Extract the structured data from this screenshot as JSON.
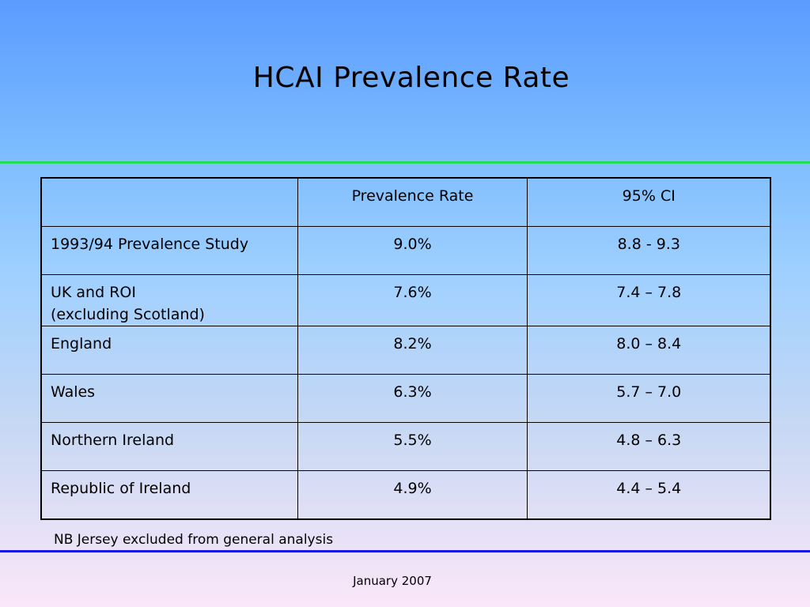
{
  "slide": {
    "title": "HCAI Prevalence Rate",
    "note": "NB Jersey excluded from general analysis",
    "footer": "January 2007"
  },
  "table": {
    "headers": [
      "",
      "Prevalence Rate",
      "95% CI"
    ],
    "rows": [
      {
        "label": "1993/94 Prevalence Study",
        "label_line2": "",
        "rate": "9.0%",
        "ci": "8.8 - 9.3"
      },
      {
        "label": "UK and ROI",
        "label_line2": "(excluding Scotland)",
        "rate": "7.6%",
        "ci": "7.4 – 7.8"
      },
      {
        "label": "England",
        "label_line2": "",
        "rate": "8.2%",
        "ci": "8.0 – 8.4"
      },
      {
        "label": "Wales",
        "label_line2": "",
        "rate": "6.3%",
        "ci": "5.7 – 7.0"
      },
      {
        "label": "Northern Ireland",
        "label_line2": "",
        "rate": "5.5%",
        "ci": "4.8 – 6.3"
      },
      {
        "label": "Republic of Ireland",
        "label_line2": "",
        "rate": "4.9%",
        "ci": "4.4 – 5.4"
      }
    ]
  },
  "colors": {
    "top_rule": "#22dd55",
    "bottom_rule": "#1a1ae6",
    "gradient_top": "#5b9bff",
    "gradient_bottom": "#fbe7f9"
  }
}
